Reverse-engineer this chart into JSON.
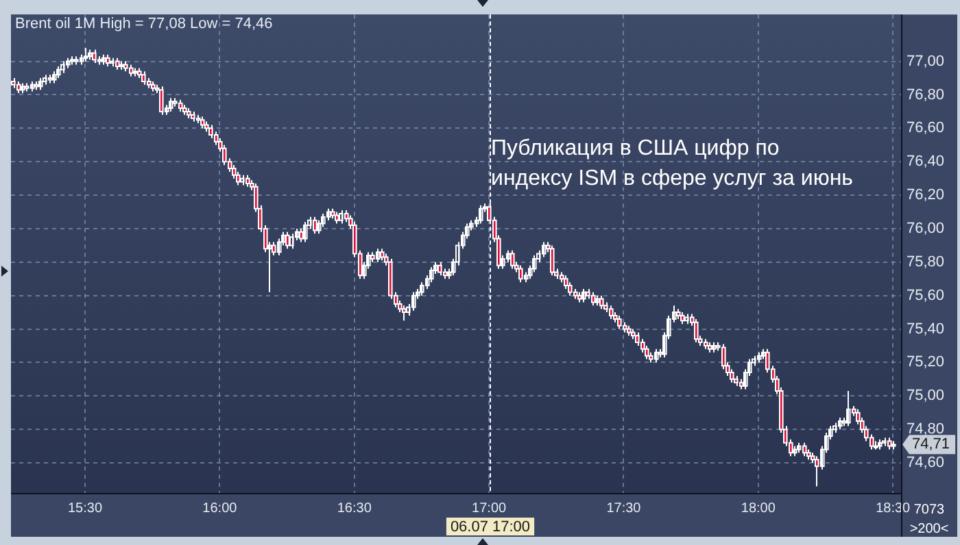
{
  "chart_data": {
    "type": "candlestick",
    "title": "Brent oil 1M High = 77,08 Low = 74,46",
    "colors": [
      "#e0103a",
      "#e0103a",
      "#ffffff",
      "#e0103a",
      "#ffffff",
      "#e0103a",
      "#ffffff",
      "#ffffff",
      "#e0103a",
      "#ffffff",
      "#ffffff",
      "#ffffff",
      "#ffffff",
      "#ffffff",
      "#e0103a",
      "#ffffff",
      "#ffffff",
      "#ffffff",
      "#e0103a",
      "#e0103a",
      "#ffffff",
      "#e0103a",
      "#ffffff",
      "#e0103a",
      "#ffffff",
      "#e0103a",
      "#e0103a",
      "#ffffff",
      "#e0103a",
      "#e0103a",
      "#e0103a",
      "#e0103a",
      "#e0103a",
      "#e0103a",
      "#ffffff",
      "#ffffff",
      "#e0103a",
      "#e0103a",
      "#e0103a",
      "#e0103a",
      "#e0103a",
      "#e0103a",
      "#e0103a",
      "#e0103a",
      "#e0103a",
      "#e0103a",
      "#e0103a",
      "#e0103a",
      "#e0103a",
      "#e0103a",
      "#e0103a",
      "#ffffff",
      "#e0103a",
      "#e0103a",
      "#e0103a",
      "#e0103a",
      "#e0103a",
      "#ffffff",
      "#e0103a",
      "#ffffff",
      "#ffffff",
      "#e0103a",
      "#ffffff",
      "#ffffff",
      "#e0103a",
      "#ffffff",
      "#ffffff",
      "#e0103a",
      "#ffffff",
      "#ffffff",
      "#ffffff",
      "#e0103a",
      "#e0103a",
      "#ffffff",
      "#e0103a",
      "#e0103a",
      "#e0103a",
      "#e0103a",
      "#ffffff",
      "#ffffff",
      "#e0103a",
      "#ffffff",
      "#e0103a",
      "#e0103a",
      "#e0103a",
      "#e0103a",
      "#e0103a",
      "#e0103a",
      "#ffffff",
      "#ffffff",
      "#ffffff",
      "#ffffff",
      "#ffffff",
      "#ffffff",
      "#ffffff",
      "#e0103a",
      "#e0103a",
      "#ffffff",
      "#ffffff",
      "#ffffff",
      "#ffffff",
      "#ffffff",
      "#ffffff",
      "#ffffff",
      "#ffffff",
      "#ffffff",
      "#e0103a",
      "#e0103a",
      "#e0103a",
      "#ffffff",
      "#ffffff",
      "#e0103a",
      "#e0103a",
      "#e0103a",
      "#ffffff",
      "#ffffff",
      "#ffffff",
      "#ffffff",
      "#ffffff",
      "#e0103a",
      "#e0103a",
      "#e0103a",
      "#e0103a",
      "#e0103a",
      "#e0103a",
      "#e0103a",
      "#e0103a",
      "#ffffff",
      "#e0103a",
      "#e0103a",
      "#ffffff",
      "#e0103a",
      "#e0103a",
      "#e0103a",
      "#e0103a",
      "#e0103a",
      "#e0103a",
      "#e0103a",
      "#e0103a",
      "#e0103a",
      "#e0103a",
      "#e0103a",
      "#e0103a",
      "#ffffff",
      "#e0103a",
      "#ffffff",
      "#ffffff",
      "#ffffff",
      "#e0103a",
      "#e0103a",
      "#ffffff",
      "#e0103a",
      "#e0103a",
      "#e0103a",
      "#e0103a",
      "#e0103a",
      "#ffffff",
      "#e0103a",
      "#e0103a",
      "#e0103a",
      "#e0103a",
      "#e0103a",
      "#e0103a",
      "#ffffff",
      "#ffffff",
      "#ffffff",
      "#ffffff",
      "#ffffff",
      "#e0103a",
      "#e0103a",
      "#e0103a",
      "#e0103a",
      "#e0103a",
      "#e0103a",
      "#ffffff",
      "#ffffff",
      "#e0103a",
      "#e0103a",
      "#e0103a",
      "#e0103a",
      "#ffffff",
      "#ffffff",
      "#ffffff",
      "#ffffff",
      "#ffffff",
      "#e0103a",
      "#ffffff",
      "#e0103a",
      "#e0103a",
      "#e0103a",
      "#e0103a",
      "#e0103a",
      "#ffffff",
      "#ffffff",
      "#ffffff",
      "#e0103a",
      "#ffffff"
    ],
    "x": [
      15.2333,
      15.25,
      15.2667,
      15.2833,
      15.3,
      15.3167,
      15.3333,
      15.35,
      15.3667,
      15.3833,
      15.4,
      15.4167,
      15.4333,
      15.45,
      15.4667,
      15.4833,
      15.5,
      15.5167,
      15.5333,
      15.55,
      15.5667,
      15.5833,
      15.6,
      15.6167,
      15.6333,
      15.65,
      15.6667,
      15.6833,
      15.7,
      15.7167,
      15.7333,
      15.75,
      15.7667,
      15.7833,
      15.8,
      15.8167,
      15.8333,
      15.85,
      15.8667,
      15.8833,
      15.9,
      15.9167,
      15.9333,
      15.95,
      15.9667,
      15.9833,
      16,
      16.0167,
      16.0333,
      16.05,
      16.0667,
      16.0833,
      16.1,
      16.1167,
      16.1333,
      16.15,
      16.1667,
      16.1833,
      16.2,
      16.2167,
      16.2333,
      16.25,
      16.2667,
      16.2833,
      16.3,
      16.3167,
      16.3333,
      16.35,
      16.3667,
      16.3833,
      16.4,
      16.4167,
      16.4333,
      16.45,
      16.4667,
      16.4833,
      16.5,
      16.5167,
      16.5333,
      16.55,
      16.5667,
      16.5833,
      16.6,
      16.6167,
      16.6333,
      16.65,
      16.6667,
      16.6833,
      16.7,
      16.7167,
      16.7333,
      16.75,
      16.7667,
      16.7833,
      16.8,
      16.8167,
      16.8333,
      16.85,
      16.8667,
      16.8833,
      16.9,
      16.9167,
      16.9333,
      16.95,
      16.9667,
      16.9833,
      17,
      17.0167,
      17.0333,
      17.05,
      17.0667,
      17.0833,
      17.1,
      17.1167,
      17.1333,
      17.15,
      17.1667,
      17.1833,
      17.2,
      17.2167,
      17.2333,
      17.25,
      17.2667,
      17.2833,
      17.3,
      17.3167,
      17.3333,
      17.35,
      17.3667,
      17.3833,
      17.4,
      17.4167,
      17.4333,
      17.45,
      17.4667,
      17.4833,
      17.5,
      17.5167,
      17.5333,
      17.55,
      17.5667,
      17.5833,
      17.6,
      17.6167,
      17.6333,
      17.65,
      17.6667,
      17.6833,
      17.7,
      17.7167,
      17.7333,
      17.75,
      17.7667,
      17.7833,
      17.8,
      17.8167,
      17.8333,
      17.85,
      17.8667,
      17.8833,
      17.9,
      17.9167,
      17.9333,
      17.95,
      17.9667,
      17.9833,
      18,
      18.0167,
      18.0333,
      18.05,
      18.0667,
      18.0833,
      18.1,
      18.1167,
      18.1333,
      18.15,
      18.1667,
      18.1833,
      18.2,
      18.2167,
      18.2333,
      18.25,
      18.2667,
      18.2833,
      18.3,
      18.3167,
      18.3333,
      18.35,
      18.3667,
      18.3833,
      18.4,
      18.4167,
      18.4333,
      18.45,
      18.4667,
      18.4833,
      18.5
    ],
    "ohlc": [
      [
        76.88,
        76.9,
        76.84,
        76.86
      ],
      [
        76.86,
        76.88,
        76.81,
        76.83
      ],
      [
        76.83,
        76.87,
        76.81,
        76.85
      ],
      [
        76.85,
        76.87,
        76.82,
        76.84
      ],
      [
        76.84,
        76.88,
        76.82,
        76.86
      ],
      [
        76.86,
        76.88,
        76.83,
        76.85
      ],
      [
        76.85,
        76.9,
        76.83,
        76.88
      ],
      [
        76.88,
        76.92,
        76.86,
        76.9
      ],
      [
        76.9,
        76.92,
        76.87,
        76.89
      ],
      [
        76.89,
        76.94,
        76.87,
        76.92
      ],
      [
        76.92,
        76.97,
        76.9,
        76.95
      ],
      [
        76.95,
        77.0,
        76.93,
        76.98
      ],
      [
        76.98,
        77.02,
        76.96,
        77.0
      ],
      [
        77.0,
        77.03,
        76.98,
        77.01
      ],
      [
        77.01,
        77.03,
        76.98,
        77.0
      ],
      [
        77.0,
        77.04,
        76.98,
        77.02
      ],
      [
        77.02,
        77.08,
        77.0,
        77.03
      ],
      [
        77.03,
        77.07,
        77.01,
        77.05
      ],
      [
        77.05,
        77.07,
        76.99,
        77.01
      ],
      [
        77.01,
        77.03,
        76.98,
        77.0
      ],
      [
        77.0,
        77.04,
        76.98,
        77.02
      ],
      [
        77.02,
        77.04,
        76.97,
        76.99
      ],
      [
        76.99,
        77.02,
        76.97,
        77.0
      ],
      [
        77.0,
        77.02,
        76.95,
        76.97
      ],
      [
        76.97,
        77.0,
        76.95,
        76.98
      ],
      [
        76.98,
        77.0,
        76.94,
        76.96
      ],
      [
        76.96,
        76.98,
        76.91,
        76.93
      ],
      [
        76.93,
        76.96,
        76.91,
        76.94
      ],
      [
        76.94,
        76.96,
        76.9,
        76.92
      ],
      [
        76.92,
        76.94,
        76.86,
        76.88
      ],
      [
        76.88,
        76.9,
        76.84,
        76.86
      ],
      [
        76.86,
        76.88,
        76.82,
        76.84
      ],
      [
        76.84,
        76.86,
        76.81,
        76.83
      ],
      [
        76.83,
        76.85,
        76.68,
        76.7
      ],
      [
        76.7,
        76.74,
        76.68,
        76.72
      ],
      [
        76.72,
        76.78,
        76.7,
        76.76
      ],
      [
        76.76,
        76.78,
        76.73,
        76.75
      ],
      [
        76.75,
        76.77,
        76.7,
        76.72
      ],
      [
        76.72,
        76.74,
        76.68,
        76.7
      ],
      [
        76.7,
        76.72,
        76.66,
        76.68
      ],
      [
        76.68,
        76.7,
        76.64,
        76.66
      ],
      [
        76.66,
        76.68,
        76.63,
        76.65
      ],
      [
        76.65,
        76.67,
        76.6,
        76.62
      ],
      [
        76.62,
        76.64,
        76.58,
        76.6
      ],
      [
        76.6,
        76.62,
        76.54,
        76.56
      ],
      [
        76.56,
        76.58,
        76.5,
        76.52
      ],
      [
        76.52,
        76.54,
        76.46,
        76.48
      ],
      [
        76.48,
        76.5,
        76.38,
        76.4
      ],
      [
        76.4,
        76.42,
        76.34,
        76.36
      ],
      [
        76.36,
        76.38,
        76.3,
        76.32
      ],
      [
        76.32,
        76.34,
        76.26,
        76.28
      ],
      [
        76.28,
        76.32,
        76.26,
        76.3
      ],
      [
        76.3,
        76.32,
        76.25,
        76.27
      ],
      [
        76.27,
        76.29,
        76.23,
        76.25
      ],
      [
        76.25,
        76.27,
        76.1,
        76.12
      ],
      [
        76.12,
        76.14,
        75.98,
        76.0
      ],
      [
        76.0,
        76.02,
        75.86,
        75.88
      ],
      [
        75.88,
        75.92,
        75.62,
        75.9
      ],
      [
        75.9,
        75.92,
        75.84,
        75.86
      ],
      [
        75.86,
        75.94,
        75.84,
        75.92
      ],
      [
        75.92,
        75.98,
        75.9,
        75.96
      ],
      [
        75.96,
        75.98,
        75.88,
        75.9
      ],
      [
        75.9,
        75.97,
        75.88,
        75.95
      ],
      [
        75.95,
        76.0,
        75.93,
        75.98
      ],
      [
        75.98,
        76.0,
        75.92,
        75.94
      ],
      [
        75.94,
        76.04,
        75.92,
        76.02
      ],
      [
        76.02,
        76.07,
        76.0,
        76.05
      ],
      [
        76.05,
        76.07,
        75.97,
        75.99
      ],
      [
        75.99,
        76.05,
        75.97,
        76.03
      ],
      [
        76.03,
        76.09,
        76.01,
        76.07
      ],
      [
        76.07,
        76.12,
        76.05,
        76.1
      ],
      [
        76.1,
        76.12,
        76.06,
        76.08
      ],
      [
        76.08,
        76.1,
        76.03,
        76.05
      ],
      [
        76.05,
        76.11,
        76.03,
        76.09
      ],
      [
        76.09,
        76.11,
        76.04,
        76.06
      ],
      [
        76.06,
        76.08,
        76.0,
        76.02
      ],
      [
        76.02,
        76.04,
        75.83,
        75.85
      ],
      [
        75.85,
        75.87,
        75.7,
        75.72
      ],
      [
        75.72,
        75.8,
        75.7,
        75.78
      ],
      [
        75.78,
        75.86,
        75.76,
        75.84
      ],
      [
        75.84,
        75.86,
        75.8,
        75.82
      ],
      [
        75.82,
        75.88,
        75.8,
        75.86
      ],
      [
        75.86,
        75.88,
        75.81,
        75.83
      ],
      [
        75.83,
        75.85,
        75.78,
        75.8
      ],
      [
        75.8,
        75.82,
        75.58,
        75.6
      ],
      [
        75.6,
        75.62,
        75.53,
        75.55
      ],
      [
        75.55,
        75.57,
        75.5,
        75.52
      ],
      [
        75.52,
        75.54,
        75.45,
        75.5
      ],
      [
        75.5,
        75.55,
        75.48,
        75.53
      ],
      [
        75.53,
        75.62,
        75.51,
        75.6
      ],
      [
        75.6,
        75.64,
        75.58,
        75.62
      ],
      [
        75.62,
        75.68,
        75.6,
        75.66
      ],
      [
        75.66,
        75.72,
        75.64,
        75.7
      ],
      [
        75.7,
        75.77,
        75.68,
        75.75
      ],
      [
        75.75,
        75.8,
        75.73,
        75.78
      ],
      [
        75.78,
        75.8,
        75.72,
        75.74
      ],
      [
        75.74,
        75.76,
        75.7,
        75.72
      ],
      [
        75.72,
        75.76,
        75.7,
        75.74
      ],
      [
        75.74,
        75.82,
        75.72,
        75.8
      ],
      [
        75.8,
        75.92,
        75.78,
        75.9
      ],
      [
        75.9,
        75.98,
        75.88,
        75.96
      ],
      [
        75.96,
        76.03,
        75.94,
        76.01
      ],
      [
        76.01,
        76.05,
        75.99,
        76.03
      ],
      [
        76.03,
        76.07,
        76.01,
        76.05
      ],
      [
        76.05,
        76.14,
        76.03,
        76.12
      ],
      [
        76.12,
        76.15,
        76.1,
        76.13
      ],
      [
        76.13,
        76.15,
        76.03,
        76.05
      ],
      [
        76.05,
        76.07,
        75.92,
        75.94
      ],
      [
        75.94,
        75.96,
        75.76,
        75.78
      ],
      [
        75.78,
        75.84,
        75.76,
        75.82
      ],
      [
        75.82,
        75.87,
        75.8,
        75.85
      ],
      [
        75.85,
        75.87,
        75.76,
        75.78
      ],
      [
        75.78,
        75.8,
        75.74,
        75.76
      ],
      [
        75.76,
        75.78,
        75.68,
        75.7
      ],
      [
        75.7,
        75.74,
        75.68,
        75.72
      ],
      [
        75.72,
        75.78,
        75.7,
        75.76
      ],
      [
        75.76,
        75.84,
        75.74,
        75.82
      ],
      [
        75.82,
        75.87,
        75.8,
        75.85
      ],
      [
        75.85,
        75.92,
        75.83,
        75.9
      ],
      [
        75.9,
        75.92,
        75.86,
        75.88
      ],
      [
        75.88,
        75.9,
        75.72,
        75.74
      ],
      [
        75.74,
        75.76,
        75.7,
        75.72
      ],
      [
        75.72,
        75.74,
        75.68,
        75.7
      ],
      [
        75.7,
        75.72,
        75.64,
        75.66
      ],
      [
        75.66,
        75.68,
        75.6,
        75.62
      ],
      [
        75.62,
        75.64,
        75.58,
        75.6
      ],
      [
        75.6,
        75.62,
        75.56,
        75.58
      ],
      [
        75.58,
        75.64,
        75.56,
        75.62
      ],
      [
        75.62,
        75.64,
        75.58,
        75.6
      ],
      [
        75.6,
        75.62,
        75.54,
        75.56
      ],
      [
        75.56,
        75.6,
        75.54,
        75.58
      ],
      [
        75.58,
        75.6,
        75.52,
        75.54
      ],
      [
        75.54,
        75.56,
        75.5,
        75.52
      ],
      [
        75.52,
        75.54,
        75.46,
        75.48
      ],
      [
        75.48,
        75.5,
        75.44,
        75.46
      ],
      [
        75.46,
        75.48,
        75.4,
        75.42
      ],
      [
        75.42,
        75.44,
        75.38,
        75.4
      ],
      [
        75.4,
        75.42,
        75.36,
        75.38
      ],
      [
        75.38,
        75.4,
        75.34,
        75.36
      ],
      [
        75.36,
        75.38,
        75.3,
        75.32
      ],
      [
        75.32,
        75.34,
        75.26,
        75.28
      ],
      [
        75.28,
        75.3,
        75.22,
        75.24
      ],
      [
        75.24,
        75.26,
        75.2,
        75.22
      ],
      [
        75.22,
        75.28,
        75.2,
        75.26
      ],
      [
        75.26,
        75.28,
        75.23,
        75.25
      ],
      [
        75.25,
        75.38,
        75.23,
        75.36
      ],
      [
        75.36,
        75.48,
        75.34,
        75.46
      ],
      [
        75.46,
        75.54,
        75.44,
        75.5
      ],
      [
        75.5,
        75.52,
        75.46,
        75.48
      ],
      [
        75.48,
        75.5,
        75.43,
        75.45
      ],
      [
        75.45,
        75.49,
        75.43,
        75.47
      ],
      [
        75.47,
        75.49,
        75.42,
        75.44
      ],
      [
        75.44,
        75.46,
        75.32,
        75.34
      ],
      [
        75.34,
        75.36,
        75.3,
        75.32
      ],
      [
        75.32,
        75.34,
        75.28,
        75.3
      ],
      [
        75.3,
        75.32,
        75.26,
        75.28
      ],
      [
        75.28,
        75.32,
        75.26,
        75.3
      ],
      [
        75.3,
        75.32,
        75.27,
        75.29
      ],
      [
        75.29,
        75.31,
        75.16,
        75.18
      ],
      [
        75.18,
        75.2,
        75.12,
        75.14
      ],
      [
        75.14,
        75.16,
        75.08,
        75.1
      ],
      [
        75.1,
        75.12,
        75.06,
        75.08
      ],
      [
        75.08,
        75.1,
        75.04,
        75.06
      ],
      [
        75.06,
        75.16,
        75.04,
        75.14
      ],
      [
        75.14,
        75.22,
        75.12,
        75.2
      ],
      [
        75.2,
        75.24,
        75.18,
        75.22
      ],
      [
        75.22,
        75.26,
        75.2,
        75.24
      ],
      [
        75.24,
        75.28,
        75.22,
        75.26
      ],
      [
        75.26,
        75.28,
        75.14,
        75.16
      ],
      [
        75.16,
        75.18,
        75.08,
        75.1
      ],
      [
        75.1,
        75.12,
        75.01,
        75.03
      ],
      [
        75.03,
        75.05,
        74.78,
        74.8
      ],
      [
        74.8,
        74.82,
        74.7,
        74.72
      ],
      [
        74.72,
        74.74,
        74.64,
        74.66
      ],
      [
        74.66,
        74.7,
        74.64,
        74.68
      ],
      [
        74.68,
        74.72,
        74.66,
        74.7
      ],
      [
        74.7,
        74.72,
        74.64,
        74.66
      ],
      [
        74.66,
        74.68,
        74.62,
        74.64
      ],
      [
        74.64,
        74.66,
        74.6,
        74.62
      ],
      [
        74.62,
        74.64,
        74.46,
        74.58
      ],
      [
        74.58,
        74.7,
        74.56,
        74.68
      ],
      [
        74.68,
        74.78,
        74.66,
        74.76
      ],
      [
        74.76,
        74.82,
        74.74,
        74.8
      ],
      [
        74.8,
        74.84,
        74.78,
        74.82
      ],
      [
        74.82,
        74.87,
        74.8,
        74.85
      ],
      [
        74.85,
        74.87,
        74.82,
        74.84
      ],
      [
        74.84,
        75.03,
        74.82,
        74.92
      ],
      [
        74.92,
        74.94,
        74.88,
        74.9
      ],
      [
        74.9,
        74.92,
        74.83,
        74.85
      ],
      [
        74.85,
        74.87,
        74.78,
        74.8
      ],
      [
        74.8,
        74.82,
        74.73,
        74.75
      ],
      [
        74.75,
        74.77,
        74.68,
        74.7
      ],
      [
        74.7,
        74.73,
        74.68,
        74.7
      ],
      [
        74.7,
        74.74,
        74.68,
        74.72
      ],
      [
        74.72,
        74.75,
        74.7,
        74.73
      ],
      [
        74.73,
        74.75,
        74.68,
        74.7
      ],
      [
        74.7,
        74.73,
        74.68,
        74.71
      ]
    ],
    "xlim": [
      15.225,
      18.53
    ],
    "xticks": [
      {
        "value": 15.5,
        "label": "15:30"
      },
      {
        "value": 16,
        "label": "16:00"
      },
      {
        "value": 16.5,
        "label": "16:30"
      },
      {
        "value": 17,
        "label": "17:00"
      },
      {
        "value": 17.5,
        "label": "17:30"
      },
      {
        "value": 18,
        "label": "18:00"
      },
      {
        "value": 18.5,
        "label": "18:30"
      }
    ],
    "ylim": [
      74.42,
      77.28
    ],
    "yticks": [
      {
        "value": 74.6,
        "label": "74,60"
      },
      {
        "value": 74.8,
        "label": "74,80"
      },
      {
        "value": 75,
        "label": "75,00"
      },
      {
        "value": 75.2,
        "label": "75,20"
      },
      {
        "value": 75.4,
        "label": "75,40"
      },
      {
        "value": 75.6,
        "label": "75,60"
      },
      {
        "value": 75.8,
        "label": "75,80"
      },
      {
        "value": 76,
        "label": "76,00"
      },
      {
        "value": 76.2,
        "label": "76,20"
      },
      {
        "value": 76.4,
        "label": "76,40"
      },
      {
        "value": 76.6,
        "label": "76,60"
      },
      {
        "value": 76.8,
        "label": "76,80"
      },
      {
        "value": 77,
        "label": "77,00"
      }
    ],
    "grid": true,
    "ref_lines": [
      {
        "axis": "x",
        "value": 17,
        "label": "06.07 17:00",
        "color": "#ffffff",
        "line_style": "dashed"
      }
    ],
    "annotations": [
      "Публикация в США цифр по индексу ISM в сфере услуг за июнь",
      {
        "text": "74,71",
        "x": 18.5,
        "y": 74.71
      },
      "7073",
      ">200<"
    ]
  }
}
